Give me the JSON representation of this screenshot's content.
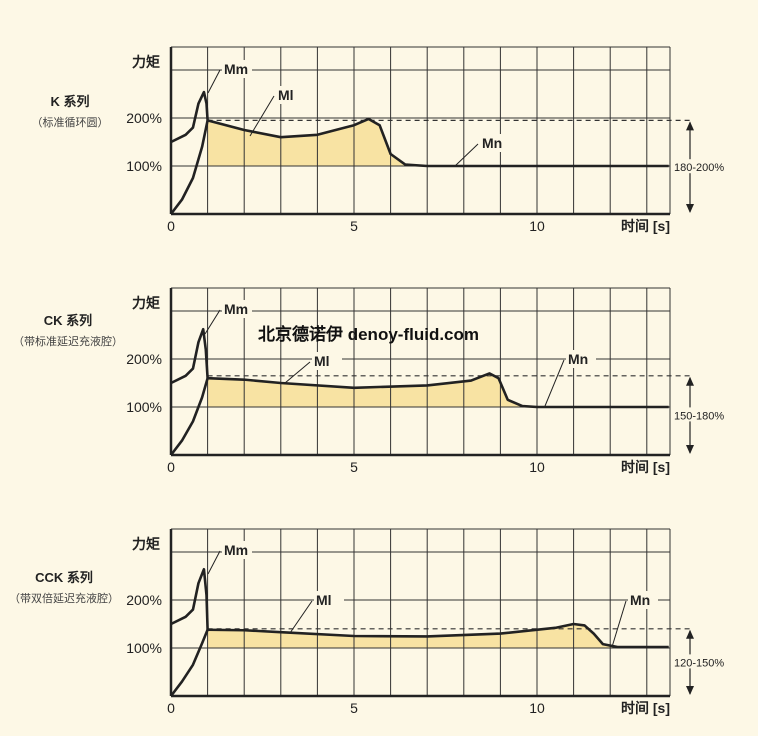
{
  "watermark": "北京德诺伊 denoy-fluid.com",
  "colors": {
    "background": "#fdf8e6",
    "fill": "#f8e3a3",
    "line": "#222222",
    "grid": "#333333"
  },
  "chart_data": [
    {
      "type": "line",
      "series_title": "K 系列",
      "series_subtitle": "（标准循环圆）",
      "ylabel": "力矩",
      "xlabel": "时间 [s]",
      "xticks": [
        "0",
        "5",
        "10"
      ],
      "yticks": [
        "100%",
        "200%"
      ],
      "xlim": [
        0,
        13.6
      ],
      "ylim": [
        0,
        350
      ],
      "grid": true,
      "range_label": "180-200%",
      "dashed_level": 195,
      "labels": {
        "mm": "Mm",
        "ml": "Ml",
        "mn": "Mn"
      },
      "series": [
        {
          "name": "rise",
          "x": [
            0,
            0.3,
            0.6,
            0.85,
            1.0
          ],
          "y": [
            0,
            30,
            75,
            140,
            195
          ]
        },
        {
          "name": "Mm",
          "x": [
            0,
            0.4,
            0.6,
            0.75,
            0.9,
            0.97,
            1.0
          ],
          "y": [
            150,
            165,
            180,
            230,
            254,
            230,
            195
          ]
        },
        {
          "name": "Ml",
          "x": [
            1.0,
            2.0,
            3.0,
            4.0,
            5.0,
            5.4,
            5.7,
            6.0,
            6.4,
            7.0,
            13.6
          ],
          "y": [
            195,
            175,
            160,
            165,
            185,
            198,
            185,
            125,
            103,
            100,
            100
          ]
        }
      ]
    },
    {
      "type": "line",
      "series_title": "CK 系列",
      "series_subtitle": "（带标准延迟充液腔）",
      "ylabel": "力矩",
      "xlabel": "时间 [s]",
      "xticks": [
        "0",
        "5",
        "10"
      ],
      "yticks": [
        "100%",
        "200%"
      ],
      "xlim": [
        0,
        13.6
      ],
      "ylim": [
        0,
        350
      ],
      "grid": true,
      "range_label": "150-180%",
      "dashed_level": 165,
      "labels": {
        "mm": "Mm",
        "ml": "Ml",
        "mn": "Mn"
      },
      "series": [
        {
          "name": "rise",
          "x": [
            0,
            0.3,
            0.6,
            0.85,
            1.0
          ],
          "y": [
            0,
            30,
            70,
            120,
            160
          ]
        },
        {
          "name": "Mm",
          "x": [
            0,
            0.4,
            0.6,
            0.75,
            0.88,
            0.95,
            1.0
          ],
          "y": [
            150,
            165,
            180,
            235,
            262,
            220,
            160
          ]
        },
        {
          "name": "Ml",
          "x": [
            1.0,
            2.0,
            3.0,
            5.0,
            7.0,
            8.2,
            8.7,
            8.95,
            9.2,
            9.6,
            10.0,
            13.6
          ],
          "y": [
            160,
            157,
            150,
            140,
            145,
            155,
            170,
            160,
            115,
            102,
            100,
            100
          ]
        }
      ]
    },
    {
      "type": "line",
      "series_title": "CCK 系列",
      "series_subtitle": "（带双倍延迟充液腔）",
      "ylabel": "力矩",
      "xlabel": "时间 [s]",
      "xticks": [
        "0",
        "5",
        "10"
      ],
      "yticks": [
        "100%",
        "200%"
      ],
      "xlim": [
        0,
        13.6
      ],
      "ylim": [
        0,
        350
      ],
      "grid": true,
      "range_label": "120-150%",
      "dashed_level": 140,
      "labels": {
        "mm": "Mm",
        "ml": "Ml",
        "mn": "Mn"
      },
      "series": [
        {
          "name": "rise",
          "x": [
            0,
            0.3,
            0.6,
            0.85,
            1.0
          ],
          "y": [
            0,
            30,
            65,
            110,
            138
          ]
        },
        {
          "name": "Mm",
          "x": [
            0,
            0.4,
            0.6,
            0.75,
            0.9,
            0.97,
            1.0
          ],
          "y": [
            150,
            165,
            180,
            235,
            264,
            210,
            138
          ]
        },
        {
          "name": "Ml",
          "x": [
            1.0,
            2.0,
            3.0,
            5.0,
            7.0,
            9.0,
            10.5,
            11.0,
            11.3,
            11.55,
            11.8,
            12.2,
            13.6
          ],
          "y": [
            138,
            137,
            133,
            125,
            124,
            130,
            142,
            150,
            147,
            130,
            108,
            102,
            102
          ]
        }
      ]
    }
  ]
}
